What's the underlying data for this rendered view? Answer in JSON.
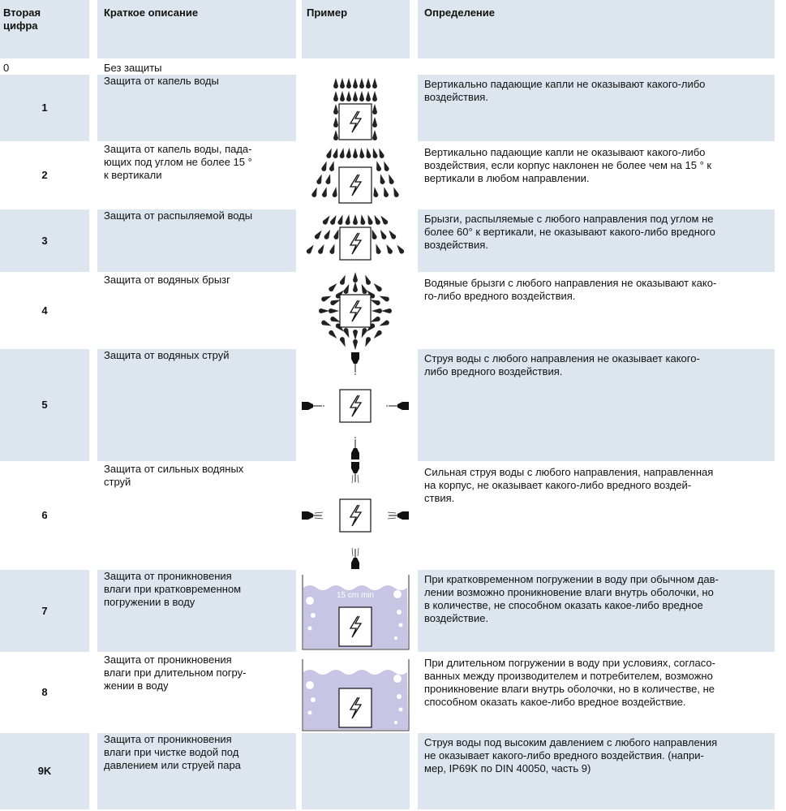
{
  "table": {
    "header": [
      [
        "Вторая",
        "цифра"
      ],
      [
        "Краткое описание"
      ],
      [
        "Пример"
      ],
      [
        "Определение"
      ]
    ],
    "rows": [
      {
        "digit": "0",
        "description": [
          "Без защиты"
        ],
        "definition": []
      },
      {
        "digit": "1",
        "description": [
          "Защита от капель воды"
        ],
        "definition": [
          "Вертикально падающие капли не оказывают какого-либо",
          "воздействия."
        ]
      },
      {
        "digit": "2",
        "description": [
          "Защита от капель воды, пада-",
          "ющих под углом не более 15 °",
          "к вертикали"
        ],
        "definition": [
          "Вертикально падающие капли не оказывают какого-либо",
          "воздействия, если корпус наклонен не более чем на 15 ° к",
          "вертикали в любом направлении."
        ]
      },
      {
        "digit": "3",
        "description": [
          "Защита от распыляемой воды"
        ],
        "definition": [
          "Брызги, распыляемые с любого направления под углом не",
          "более 60° к вертикали, не оказывают какого-либо вредного",
          "воздействия."
        ]
      },
      {
        "digit": "4",
        "description": [
          "Защита от водяных брызг"
        ],
        "definition": [
          "Водяные брызги с любого направления не оказывают како-",
          "го-либо вредного воздействия."
        ]
      },
      {
        "digit": "5",
        "description": [
          "Защита от водяных струй"
        ],
        "definition": [
          "Струя воды с любого направления не оказывает какого-",
          "либо вредного воздействия."
        ]
      },
      {
        "digit": "6",
        "description": [
          "Защита от сильных водяных",
          "струй"
        ],
        "definition": [
          "Сильная струя воды с любого направления, направленная",
          "на корпус, не оказывает какого-либо вредного воздей-",
          "ствия."
        ]
      },
      {
        "digit": "7",
        "description": [
          "Защита от проникновения",
          "влаги при кратковременном",
          "погружении в воду"
        ],
        "example_text": "15 cm min",
        "definition": [
          "При кратковременном погружении в воду при обычном дав-",
          "лении возможно проникновение влаги внутрь оболочки, но",
          "в количестве, не способном оказать какое-либо вредное",
          "воздействие."
        ]
      },
      {
        "digit": "8",
        "description": [
          "Защита от проникновения",
          "влаги при длительном погру-",
          "жении в воду"
        ],
        "definition": [
          "При длительном погружении в воду при условиях, согласо-",
          "ванных между производителем и потребителем, возможно",
          "проникновение влаги внутрь оболочки, но в количестве, не",
          "способном оказать какое-либо вредное воздействие."
        ]
      },
      {
        "digit": "9K",
        "description": [
          "Защита от проникновения",
          "влаги при чистке водой под",
          "давлением или струей пара"
        ],
        "definition": [
          "Струя воды под высоким давлением с любого направления",
          "не оказывает какого-либо вредного воздействия. (напри-",
          "мер, IP69K по DIN 40050, часть 9)"
        ]
      }
    ]
  }
}
